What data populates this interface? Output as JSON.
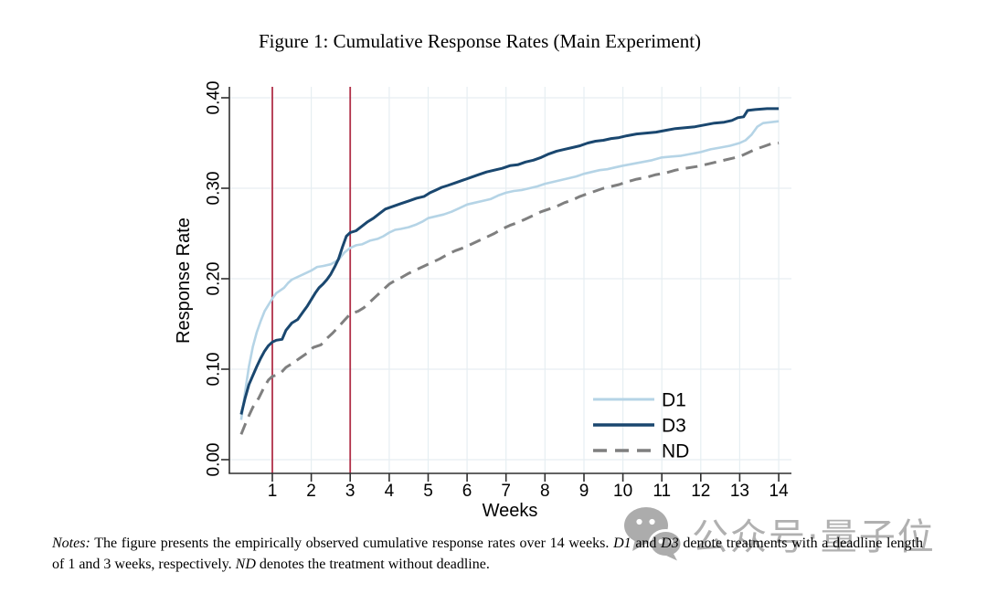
{
  "figure": {
    "title": "Figure 1: Cumulative Response Rates (Main Experiment)"
  },
  "chart_data": {
    "type": "line",
    "title": "Figure 1: Cumulative Response Rates (Main Experiment)",
    "xlabel": "Weeks",
    "ylabel": "Response Rate",
    "xlim": [
      0,
      14.35
    ],
    "ylim": [
      0.0,
      0.4
    ],
    "grid": true,
    "grid_color": "#e6eef2",
    "axis_color": "#2f2f2f",
    "x_ticks": [
      1,
      2,
      3,
      4,
      5,
      6,
      7,
      8,
      9,
      10,
      11,
      12,
      13,
      14
    ],
    "y_ticks": [
      {
        "v": 0.0,
        "label": "0.00"
      },
      {
        "v": 0.1,
        "label": "0.10"
      },
      {
        "v": 0.2,
        "label": "0.20"
      },
      {
        "v": 0.3,
        "label": "0.30"
      },
      {
        "v": 0.4,
        "label": "0.40"
      }
    ],
    "vlines": [
      {
        "x": 1,
        "color": "#b13049"
      },
      {
        "x": 3,
        "color": "#b13049"
      }
    ],
    "legend": {
      "position": "lower-right",
      "entries": [
        "D1",
        "D3",
        "ND"
      ]
    },
    "series": [
      {
        "name": "D1",
        "color": "#b5d4e6",
        "width": 2.6,
        "dash": null,
        "points": [
          [
            0.2,
            0.044
          ],
          [
            0.3,
            0.075
          ],
          [
            0.4,
            0.103
          ],
          [
            0.5,
            0.125
          ],
          [
            0.6,
            0.141
          ],
          [
            0.7,
            0.153
          ],
          [
            0.8,
            0.164
          ],
          [
            0.9,
            0.171
          ],
          [
            1.0,
            0.178
          ],
          [
            1.1,
            0.184
          ],
          [
            1.2,
            0.187
          ],
          [
            1.3,
            0.19
          ],
          [
            1.4,
            0.195
          ],
          [
            1.5,
            0.199
          ],
          [
            1.6,
            0.201
          ],
          [
            1.8,
            0.205
          ],
          [
            2.0,
            0.209
          ],
          [
            2.15,
            0.213
          ],
          [
            2.3,
            0.214
          ],
          [
            2.5,
            0.216
          ],
          [
            2.7,
            0.221
          ],
          [
            2.85,
            0.229
          ],
          [
            3.0,
            0.234
          ],
          [
            3.15,
            0.237
          ],
          [
            3.3,
            0.238
          ],
          [
            3.5,
            0.242
          ],
          [
            3.7,
            0.244
          ],
          [
            3.85,
            0.247
          ],
          [
            4.0,
            0.251
          ],
          [
            4.15,
            0.254
          ],
          [
            4.3,
            0.255
          ],
          [
            4.5,
            0.257
          ],
          [
            4.7,
            0.26
          ],
          [
            4.85,
            0.263
          ],
          [
            5.0,
            0.267
          ],
          [
            5.2,
            0.269
          ],
          [
            5.4,
            0.271
          ],
          [
            5.6,
            0.274
          ],
          [
            5.8,
            0.278
          ],
          [
            6.0,
            0.282
          ],
          [
            6.2,
            0.284
          ],
          [
            6.4,
            0.286
          ],
          [
            6.6,
            0.288
          ],
          [
            6.8,
            0.292
          ],
          [
            7.0,
            0.295
          ],
          [
            7.2,
            0.297
          ],
          [
            7.4,
            0.298
          ],
          [
            7.6,
            0.3
          ],
          [
            7.8,
            0.302
          ],
          [
            8.0,
            0.305
          ],
          [
            8.2,
            0.307
          ],
          [
            8.4,
            0.309
          ],
          [
            8.6,
            0.311
          ],
          [
            8.8,
            0.313
          ],
          [
            9.0,
            0.316
          ],
          [
            9.2,
            0.318
          ],
          [
            9.4,
            0.32
          ],
          [
            9.6,
            0.321
          ],
          [
            9.8,
            0.323
          ],
          [
            10.0,
            0.325
          ],
          [
            10.25,
            0.327
          ],
          [
            10.5,
            0.329
          ],
          [
            10.75,
            0.331
          ],
          [
            11.0,
            0.334
          ],
          [
            11.25,
            0.335
          ],
          [
            11.5,
            0.336
          ],
          [
            11.75,
            0.338
          ],
          [
            12.0,
            0.34
          ],
          [
            12.25,
            0.343
          ],
          [
            12.5,
            0.345
          ],
          [
            12.75,
            0.347
          ],
          [
            13.0,
            0.35
          ],
          [
            13.15,
            0.353
          ],
          [
            13.3,
            0.359
          ],
          [
            13.45,
            0.368
          ],
          [
            13.6,
            0.372
          ],
          [
            13.8,
            0.373
          ],
          [
            14.0,
            0.374
          ]
        ]
      },
      {
        "name": "D3",
        "color": "#1a476f",
        "width": 3.0,
        "dash": null,
        "points": [
          [
            0.2,
            0.05
          ],
          [
            0.3,
            0.068
          ],
          [
            0.4,
            0.083
          ],
          [
            0.5,
            0.093
          ],
          [
            0.6,
            0.103
          ],
          [
            0.7,
            0.112
          ],
          [
            0.8,
            0.12
          ],
          [
            0.9,
            0.126
          ],
          [
            1.0,
            0.13
          ],
          [
            1.1,
            0.132
          ],
          [
            1.25,
            0.133
          ],
          [
            1.35,
            0.143
          ],
          [
            1.5,
            0.151
          ],
          [
            1.65,
            0.155
          ],
          [
            1.8,
            0.164
          ],
          [
            1.9,
            0.17
          ],
          [
            2.0,
            0.177
          ],
          [
            2.1,
            0.184
          ],
          [
            2.2,
            0.19
          ],
          [
            2.3,
            0.194
          ],
          [
            2.4,
            0.199
          ],
          [
            2.5,
            0.205
          ],
          [
            2.6,
            0.213
          ],
          [
            2.7,
            0.222
          ],
          [
            2.8,
            0.235
          ],
          [
            2.9,
            0.247
          ],
          [
            3.0,
            0.251
          ],
          [
            3.15,
            0.253
          ],
          [
            3.3,
            0.258
          ],
          [
            3.45,
            0.263
          ],
          [
            3.6,
            0.267
          ],
          [
            3.75,
            0.272
          ],
          [
            3.9,
            0.277
          ],
          [
            4.1,
            0.28
          ],
          [
            4.3,
            0.283
          ],
          [
            4.5,
            0.286
          ],
          [
            4.7,
            0.289
          ],
          [
            4.9,
            0.291
          ],
          [
            5.05,
            0.295
          ],
          [
            5.2,
            0.298
          ],
          [
            5.35,
            0.301
          ],
          [
            5.5,
            0.303
          ],
          [
            5.7,
            0.306
          ],
          [
            5.9,
            0.309
          ],
          [
            6.1,
            0.312
          ],
          [
            6.3,
            0.315
          ],
          [
            6.5,
            0.318
          ],
          [
            6.7,
            0.32
          ],
          [
            6.9,
            0.322
          ],
          [
            7.1,
            0.325
          ],
          [
            7.3,
            0.326
          ],
          [
            7.5,
            0.329
          ],
          [
            7.7,
            0.331
          ],
          [
            7.9,
            0.334
          ],
          [
            8.1,
            0.338
          ],
          [
            8.3,
            0.341
          ],
          [
            8.5,
            0.343
          ],
          [
            8.7,
            0.345
          ],
          [
            8.9,
            0.347
          ],
          [
            9.1,
            0.35
          ],
          [
            9.3,
            0.352
          ],
          [
            9.5,
            0.353
          ],
          [
            9.7,
            0.355
          ],
          [
            9.9,
            0.356
          ],
          [
            10.1,
            0.358
          ],
          [
            10.35,
            0.36
          ],
          [
            10.6,
            0.361
          ],
          [
            10.85,
            0.362
          ],
          [
            11.1,
            0.364
          ],
          [
            11.35,
            0.366
          ],
          [
            11.6,
            0.367
          ],
          [
            11.85,
            0.368
          ],
          [
            12.1,
            0.37
          ],
          [
            12.35,
            0.372
          ],
          [
            12.6,
            0.373
          ],
          [
            12.8,
            0.375
          ],
          [
            12.95,
            0.378
          ],
          [
            13.1,
            0.379
          ],
          [
            13.2,
            0.386
          ],
          [
            13.4,
            0.387
          ],
          [
            13.7,
            0.388
          ],
          [
            14.0,
            0.388
          ]
        ]
      },
      {
        "name": "ND",
        "color": "#7f7f7f",
        "width": 3.0,
        "dash": "13 8",
        "points": [
          [
            0.2,
            0.028
          ],
          [
            0.35,
            0.044
          ],
          [
            0.5,
            0.058
          ],
          [
            0.65,
            0.068
          ],
          [
            0.8,
            0.081
          ],
          [
            0.9,
            0.088
          ],
          [
            1.0,
            0.092
          ],
          [
            1.2,
            0.095
          ],
          [
            1.35,
            0.102
          ],
          [
            1.5,
            0.106
          ],
          [
            1.7,
            0.112
          ],
          [
            1.9,
            0.118
          ],
          [
            2.05,
            0.124
          ],
          [
            2.25,
            0.127
          ],
          [
            2.4,
            0.134
          ],
          [
            2.55,
            0.14
          ],
          [
            2.7,
            0.147
          ],
          [
            2.85,
            0.154
          ],
          [
            3.0,
            0.161
          ],
          [
            3.2,
            0.164
          ],
          [
            3.35,
            0.168
          ],
          [
            3.5,
            0.174
          ],
          [
            3.65,
            0.18
          ],
          [
            3.8,
            0.186
          ],
          [
            4.0,
            0.194
          ],
          [
            4.15,
            0.198
          ],
          [
            4.3,
            0.201
          ],
          [
            4.5,
            0.206
          ],
          [
            4.7,
            0.21
          ],
          [
            4.9,
            0.214
          ],
          [
            5.1,
            0.218
          ],
          [
            5.3,
            0.222
          ],
          [
            5.5,
            0.227
          ],
          [
            5.7,
            0.231
          ],
          [
            5.9,
            0.234
          ],
          [
            6.1,
            0.238
          ],
          [
            6.3,
            0.242
          ],
          [
            6.5,
            0.246
          ],
          [
            6.7,
            0.25
          ],
          [
            6.9,
            0.255
          ],
          [
            7.1,
            0.259
          ],
          [
            7.3,
            0.262
          ],
          [
            7.5,
            0.266
          ],
          [
            7.7,
            0.27
          ],
          [
            7.9,
            0.274
          ],
          [
            8.1,
            0.277
          ],
          [
            8.3,
            0.28
          ],
          [
            8.5,
            0.284
          ],
          [
            8.7,
            0.287
          ],
          [
            8.9,
            0.291
          ],
          [
            9.1,
            0.294
          ],
          [
            9.3,
            0.297
          ],
          [
            9.5,
            0.3
          ],
          [
            9.7,
            0.302
          ],
          [
            9.9,
            0.304
          ],
          [
            10.1,
            0.307
          ],
          [
            10.35,
            0.31
          ],
          [
            10.6,
            0.312
          ],
          [
            10.85,
            0.315
          ],
          [
            11.1,
            0.317
          ],
          [
            11.35,
            0.32
          ],
          [
            11.6,
            0.322
          ],
          [
            11.9,
            0.324
          ],
          [
            12.2,
            0.327
          ],
          [
            12.5,
            0.33
          ],
          [
            12.8,
            0.333
          ],
          [
            13.0,
            0.335
          ],
          [
            13.2,
            0.339
          ],
          [
            13.4,
            0.343
          ],
          [
            13.6,
            0.346
          ],
          [
            13.8,
            0.349
          ],
          [
            14.0,
            0.35
          ]
        ]
      }
    ]
  },
  "notes": {
    "parts": [
      {
        "text": "Notes:",
        "style": "italic"
      },
      {
        "text": "  The figure presents the empirically observed cumulative response rates over 14 weeks.  ",
        "style": "normal"
      },
      {
        "text": "D1",
        "style": "italic"
      },
      {
        "text": " and ",
        "style": "normal"
      },
      {
        "text": "D3",
        "style": "italic"
      },
      {
        "text": " denote treatments with a deadline length of 1 and 3 weeks, respectively.  ",
        "style": "normal"
      },
      {
        "text": "ND",
        "style": "italic"
      },
      {
        "text": " denotes the treatment without deadline.",
        "style": "normal"
      }
    ]
  },
  "watermark": {
    "icon": "wechat-icon",
    "text": "公众号·量子位",
    "color": "#9f9f9f"
  }
}
